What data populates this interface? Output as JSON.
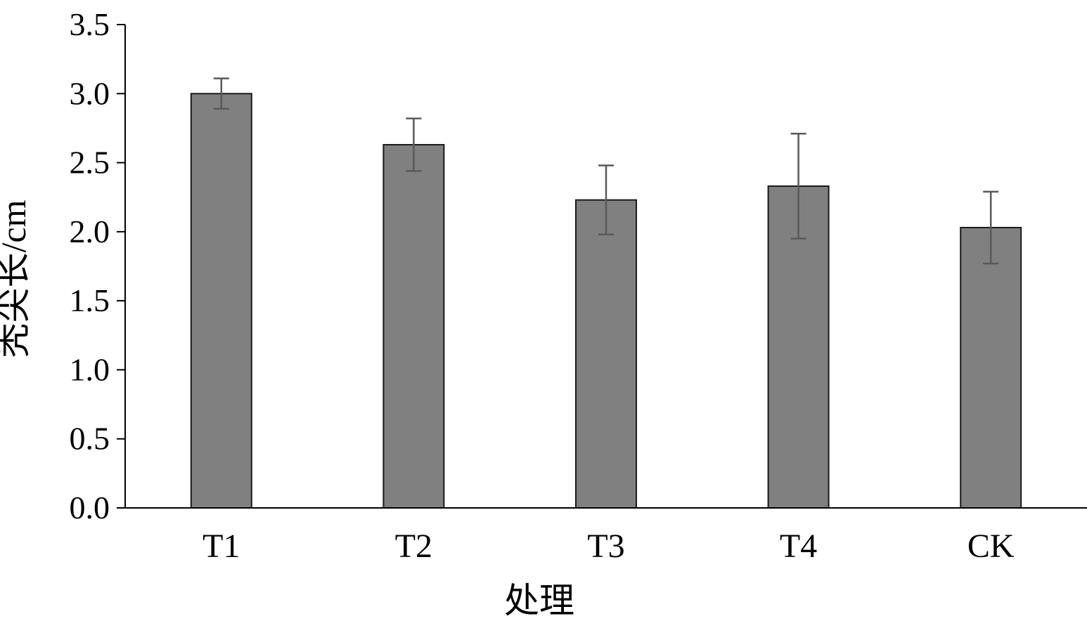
{
  "chart_data": {
    "type": "bar",
    "categories": [
      "T1",
      "T2",
      "T3",
      "T4",
      "CK"
    ],
    "series": [
      {
        "values": [
          3.0,
          2.63,
          2.23,
          2.33,
          2.03
        ],
        "error": [
          0.11,
          0.19,
          0.25,
          0.38,
          0.26
        ]
      }
    ],
    "xlabel": "处理",
    "ylabel": "秃尖长/cm",
    "ylim": [
      0,
      3.5
    ],
    "yticks": [
      "0.0",
      "0.5",
      "1.0",
      "1.5",
      "2.0",
      "2.5",
      "3.0",
      "3.5"
    ],
    "grid": false,
    "legend": "none",
    "bar_color": "#808080",
    "bar_edge_color": "#1a1a1a",
    "error_bar_color": "#595959"
  }
}
